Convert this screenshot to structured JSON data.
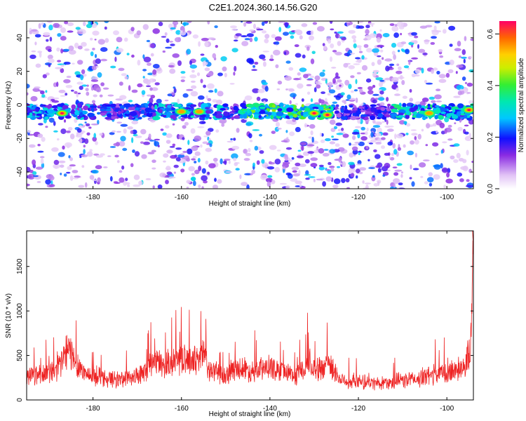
{
  "title": "C2E1.2024.360.14.56.G20",
  "chart_data": [
    {
      "type": "heatmap",
      "xlabel": "Height of straight line (km)",
      "ylabel": "Frequency (Hz)",
      "xlim": [
        -195,
        -94
      ],
      "ylim": [
        -50,
        50
      ],
      "xticks": [
        -180,
        -160,
        -140,
        -120,
        -100
      ],
      "yticks": [
        -40,
        -20,
        0,
        20,
        40
      ],
      "xtick_labels": [
        "-180",
        "-160",
        "-140",
        "-120",
        "-100"
      ],
      "ytick_labels": [
        "-40",
        "-20",
        "0",
        "20",
        "40"
      ],
      "colorbar": {
        "label": "Normalized spectral amplitude",
        "range": [
          0,
          0.65
        ],
        "ticks": [
          0,
          0.2,
          0.4,
          0.6
        ],
        "tick_labels": [
          "0.0",
          "0.2",
          "0.4",
          "0.6"
        ]
      },
      "dominant_band": {
        "frequency_hz": -4,
        "bandwidth_hz": 5,
        "x_range": [
          -195,
          -94
        ]
      },
      "peak_segments": [
        {
          "x_start": -195,
          "x_end": -180,
          "amplitude": 0.45
        },
        {
          "x_start": -166,
          "x_end": -150,
          "amplitude": 0.5
        },
        {
          "x_start": -147,
          "x_end": -126,
          "amplitude": 0.65
        },
        {
          "x_start": -112,
          "x_end": -94,
          "amplitude": 0.55
        }
      ],
      "peaks": [
        {
          "x": -187,
          "y": -5,
          "amplitude": 0.6
        },
        {
          "x": -160,
          "y": -4,
          "amplitude": 0.55
        },
        {
          "x": -156,
          "y": -4,
          "amplitude": 0.5
        },
        {
          "x": -130,
          "y": -5,
          "amplitude": 0.6
        },
        {
          "x": -127,
          "y": -6,
          "amplitude": 0.65
        },
        {
          "x": -104,
          "y": -5,
          "amplitude": 0.5
        },
        {
          "x": -95,
          "y": -3,
          "amplitude": 0.6
        }
      ]
    },
    {
      "type": "line",
      "xlabel": "Height of straight line (km)",
      "ylabel": "SNR (10 * v/v)",
      "xlim": [
        -195,
        -94
      ],
      "ylim": [
        0,
        1900
      ],
      "xticks": [
        -180,
        -160,
        -140,
        -120,
        -100
      ],
      "yticks": [
        0,
        500,
        1000,
        1500
      ],
      "xtick_labels": [
        "-180",
        "-160",
        "-140",
        "-120",
        "-100"
      ],
      "ytick_labels": [
        "0",
        "500",
        "1000",
        "1500"
      ],
      "series": [
        {
          "color": "#ee2222",
          "x": [
            -195,
            -192,
            -190,
            -188,
            -186,
            -185,
            -184,
            -182,
            -180,
            -178,
            -176,
            -174,
            -172,
            -170,
            -168,
            -166,
            -165,
            -164,
            -162,
            -160,
            -158,
            -156,
            -155,
            -154,
            -152,
            -150,
            -148,
            -146,
            -144,
            -142,
            -140,
            -138,
            -136,
            -134,
            -132,
            -131,
            -130,
            -128,
            -127,
            -126,
            -124,
            -122,
            -120,
            -118,
            -116,
            -114,
            -112,
            -110,
            -108,
            -106,
            -104,
            -102,
            -100,
            -98,
            -96,
            -95,
            -94.5,
            -94
          ],
          "y": [
            330,
            350,
            360,
            400,
            650,
            620,
            520,
            360,
            300,
            290,
            280,
            270,
            300,
            320,
            360,
            500,
            480,
            450,
            520,
            540,
            500,
            560,
            620,
            420,
            340,
            320,
            400,
            420,
            380,
            410,
            420,
            380,
            360,
            330,
            420,
            520,
            440,
            400,
            560,
            420,
            270,
            250,
            240,
            230,
            220,
            230,
            240,
            260,
            270,
            290,
            320,
            340,
            360,
            400,
            460,
            600,
            800,
            1900
          ]
        }
      ]
    }
  ]
}
